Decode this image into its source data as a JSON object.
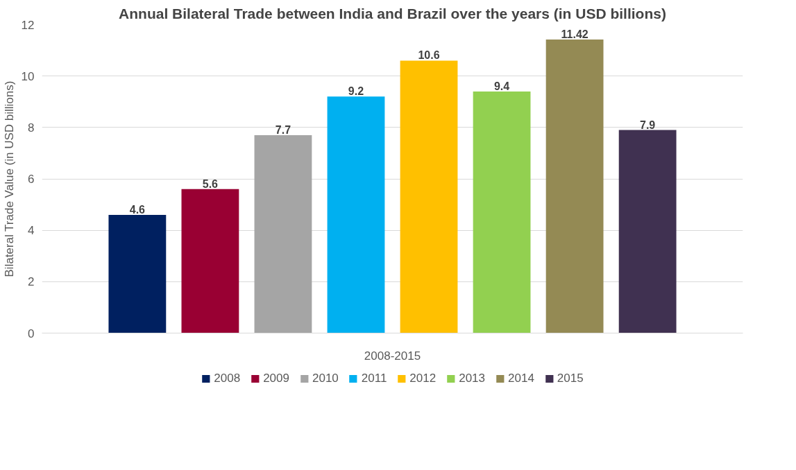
{
  "chart_data": {
    "type": "bar",
    "title": "Annual Bilateral Trade between India and Brazil over the years (in USD billions)",
    "ylabel": "Bilateral Trade Value (in USD billions)",
    "categories": [
      "2008-2015"
    ],
    "series": [
      {
        "name": "2008",
        "color": "#002060",
        "values": [
          4.6
        ]
      },
      {
        "name": "2009",
        "color": "#990033",
        "values": [
          5.6
        ]
      },
      {
        "name": "2010",
        "color": "#a5a5a5",
        "values": [
          7.7
        ]
      },
      {
        "name": "2011",
        "color": "#00b0f0",
        "values": [
          9.2
        ]
      },
      {
        "name": "2012",
        "color": "#ffc000",
        "values": [
          10.6
        ]
      },
      {
        "name": "2013",
        "color": "#92d050",
        "values": [
          9.4
        ]
      },
      {
        "name": "2014",
        "color": "#948a54",
        "values": [
          11.42
        ]
      },
      {
        "name": "2015",
        "color": "#403151",
        "values": [
          7.9
        ]
      }
    ],
    "ylim": [
      0,
      12
    ],
    "yticks": [
      0,
      2,
      4,
      6,
      8,
      10,
      12
    ],
    "grid": "y",
    "legend": "bottom",
    "data_labels": true
  }
}
